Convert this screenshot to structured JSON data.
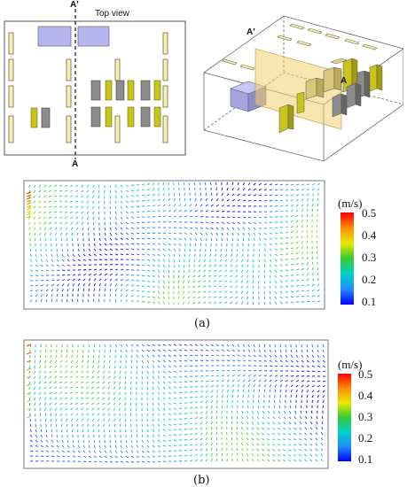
{
  "top_view": {
    "title": "Top view",
    "section_top": "A′",
    "section_bottom": "A"
  },
  "iso_view": {
    "label_a_prime": "A′",
    "label_a": "A"
  },
  "panel_a": {
    "caption": "(a)",
    "unit": "(m/s)",
    "ticks": [
      "0.5",
      "0.4",
      "0.3",
      "0.2",
      "0.1"
    ]
  },
  "panel_b": {
    "caption": "(b)",
    "unit": "(m/s)",
    "ticks": [
      "0.5",
      "0.4",
      "0.3",
      "0.2",
      "0.1"
    ]
  },
  "colors": {
    "rack": "#f5f0b8",
    "rack_stroke": "#6f6a3a",
    "unit_yellow": "#c9c419",
    "unit_grey": "#8c8c8c",
    "crac": "#b7b5ef",
    "section_plane": "#f2cf6e"
  }
}
